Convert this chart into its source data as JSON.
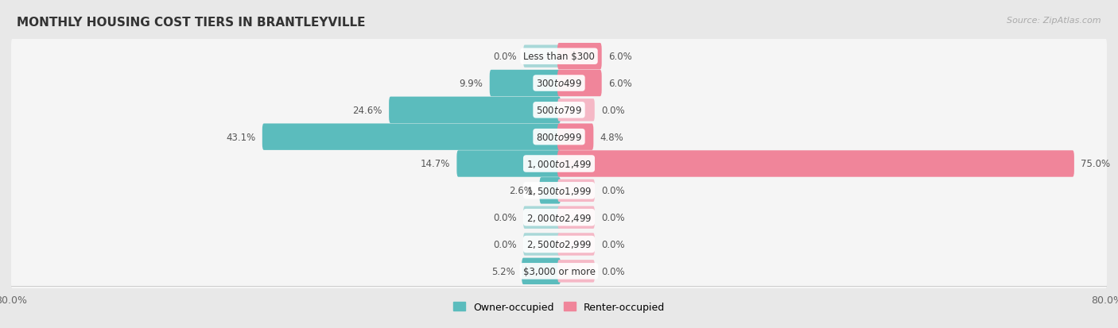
{
  "title": "MONTHLY HOUSING COST TIERS IN BRANTLEYVILLE",
  "source": "Source: ZipAtlas.com",
  "categories": [
    "Less than $300",
    "$300 to $499",
    "$500 to $799",
    "$800 to $999",
    "$1,000 to $1,499",
    "$1,500 to $1,999",
    "$2,000 to $2,499",
    "$2,500 to $2,999",
    "$3,000 or more"
  ],
  "owner_values": [
    0.0,
    9.9,
    24.6,
    43.1,
    14.7,
    2.6,
    0.0,
    0.0,
    5.2
  ],
  "renter_values": [
    6.0,
    6.0,
    0.0,
    4.8,
    75.0,
    0.0,
    0.0,
    0.0,
    0.0
  ],
  "owner_color": "#5bbcbd",
  "renter_color": "#f0859a",
  "owner_color_light": "#a8d8d8",
  "renter_color_light": "#f5b8c6",
  "background_color": "#e8e8e8",
  "row_bg_color": "#f5f5f5",
  "axis_limit": 80.0,
  "title_fontsize": 11,
  "label_fontsize": 8.5,
  "tick_fontsize": 9,
  "legend_fontsize": 9,
  "stub_size": 5.0
}
